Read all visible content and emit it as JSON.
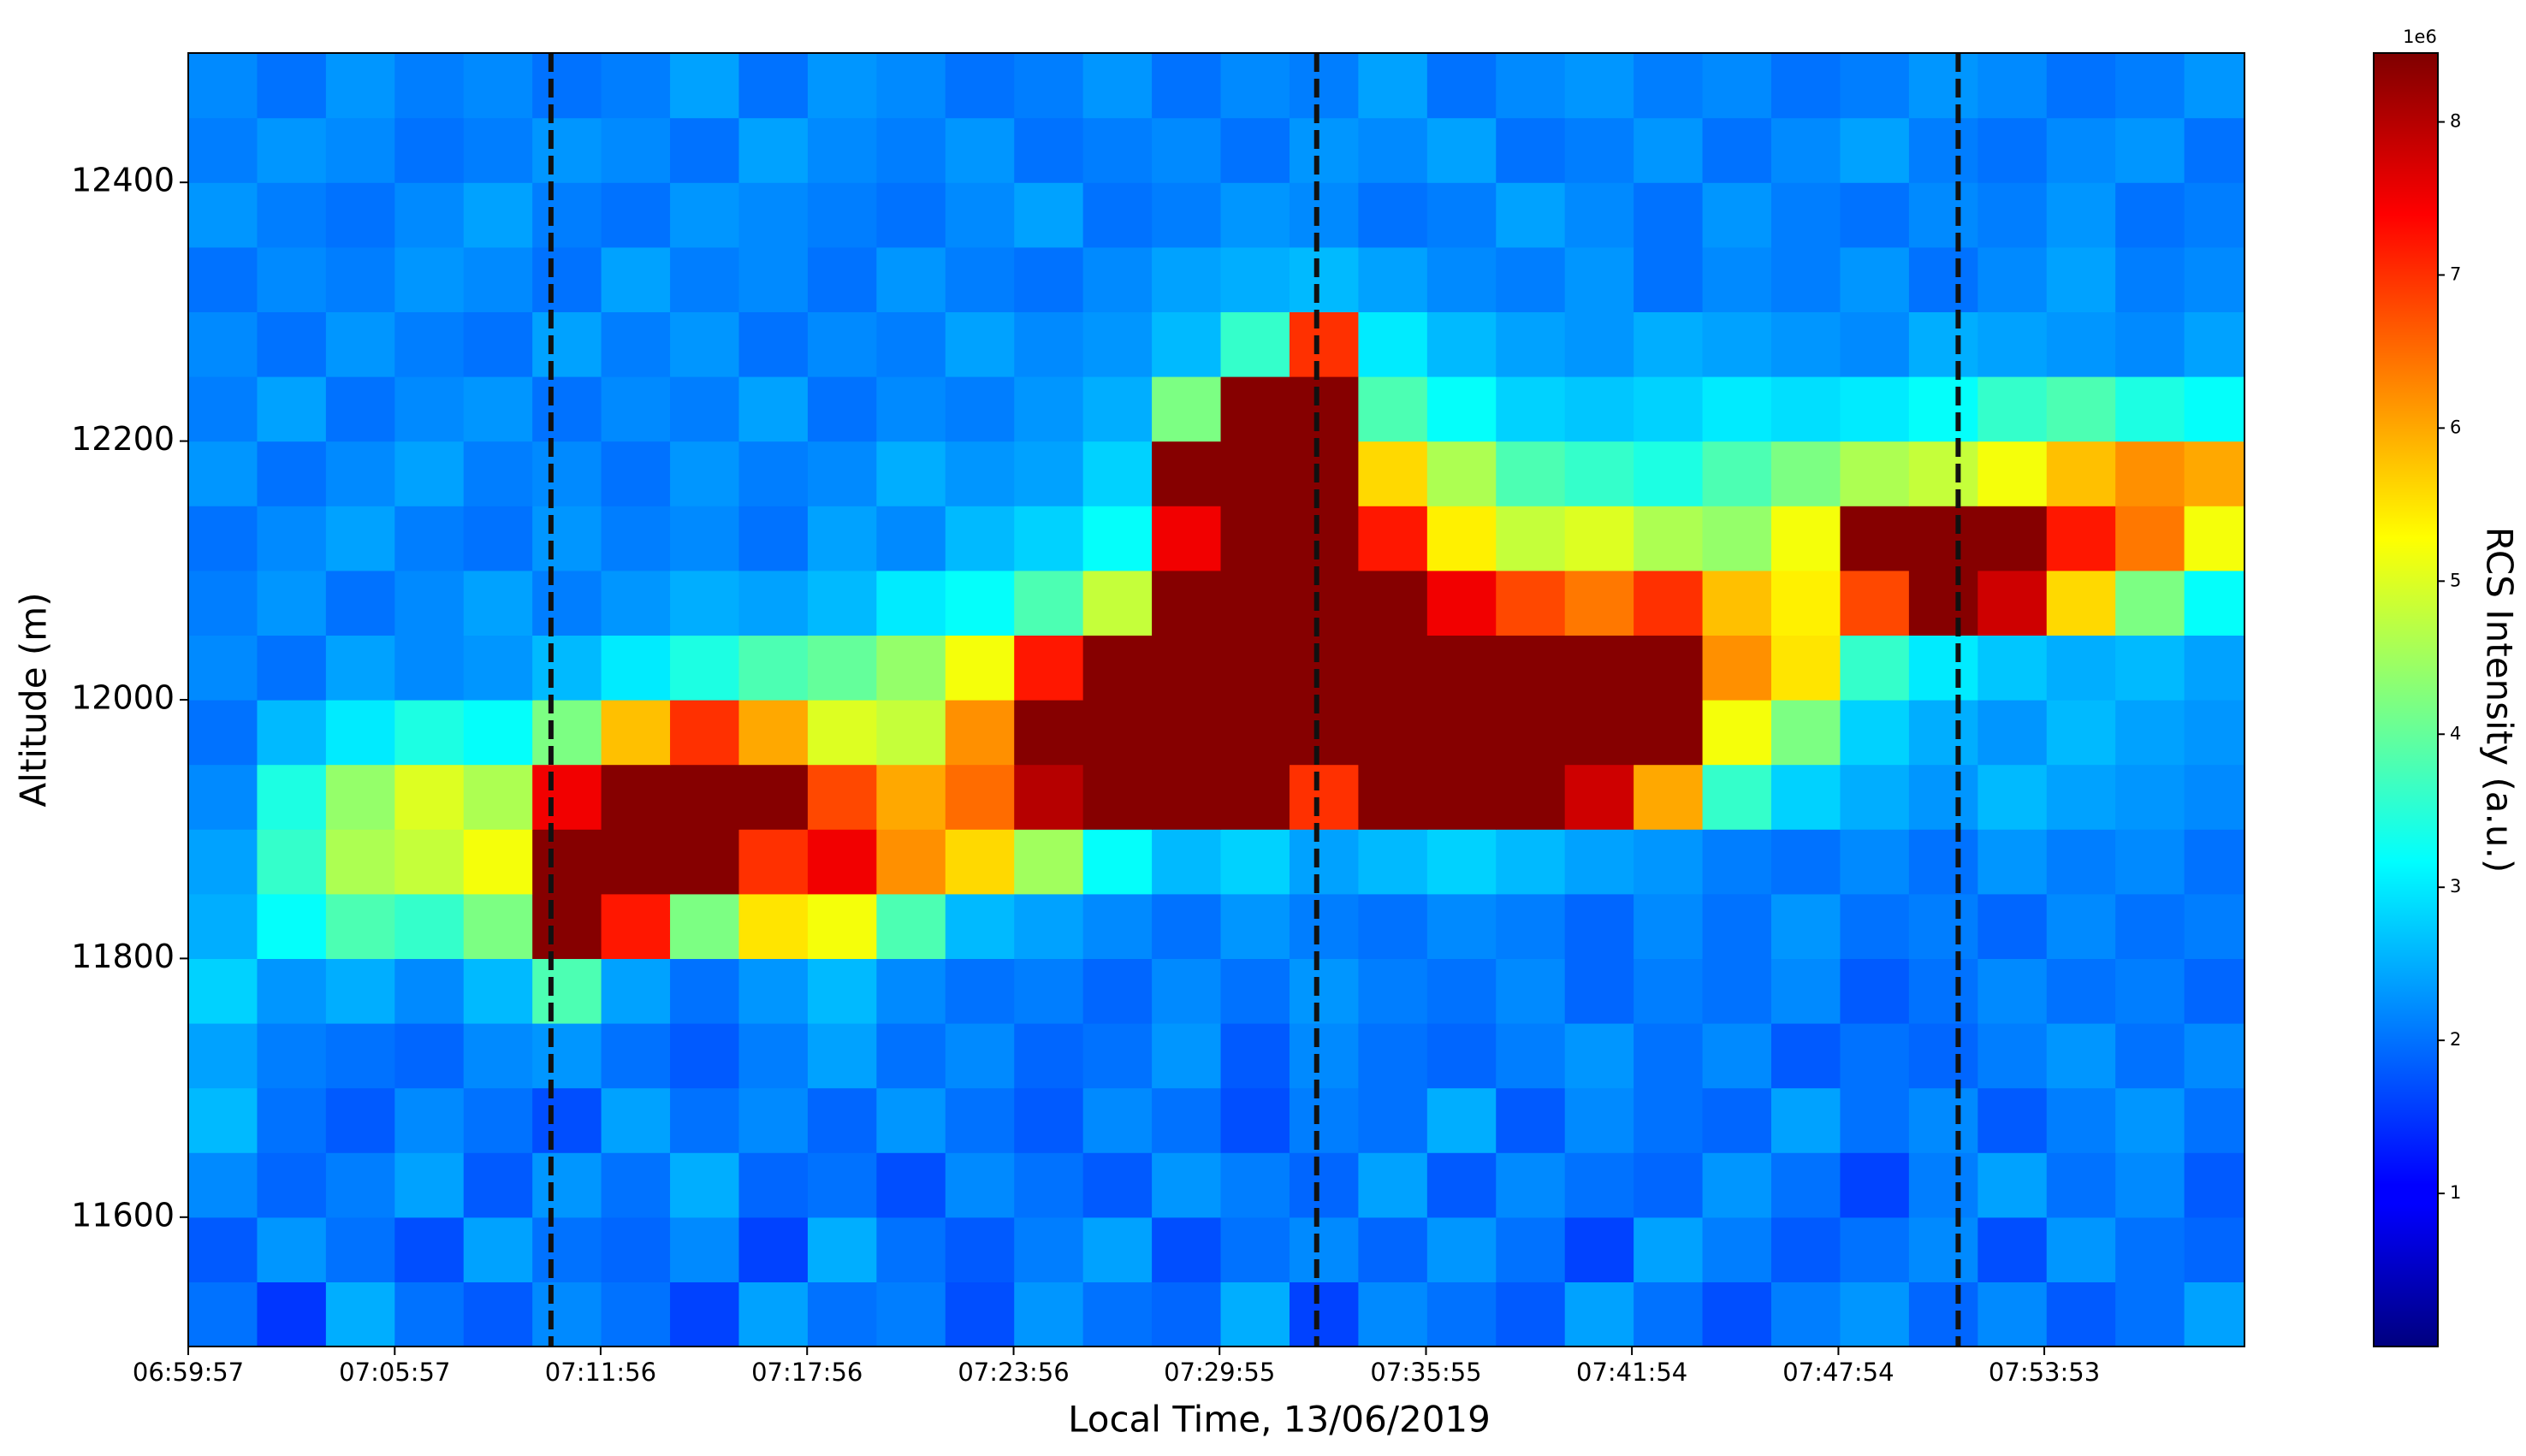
{
  "chart_data": {
    "type": "heatmap",
    "xlabel": "Local Time, 13/06/2019",
    "ylabel": "Altitude (m)",
    "x": [
      420.95,
      422.95,
      424.95,
      426.95,
      428.95,
      430.95,
      432.95,
      434.95,
      436.95,
      438.95,
      440.95,
      442.95,
      444.95,
      446.95,
      448.95,
      450.95,
      452.95,
      454.95,
      456.95,
      458.95,
      460.95,
      462.95,
      464.95,
      466.95,
      468.95,
      470.95,
      472.95,
      474.95,
      476.95,
      478.95
    ],
    "y": [
      11525,
      11575,
      11625,
      11675,
      11725,
      11775,
      11825,
      11875,
      11925,
      11975,
      12025,
      12075,
      12125,
      12175,
      12225,
      12275,
      12325,
      12375,
      12425,
      12475
    ],
    "z": [
      [
        2,
        1.5,
        2.5,
        2,
        1.8,
        2.2,
        2,
        1.6,
        2.4,
        2,
        2.1,
        1.7,
        2.3,
        2,
        1.9,
        2.5,
        1.6,
        2.2,
        2,
        1.8,
        2.4,
        2,
        1.7,
        2.1,
        2.3,
        1.9,
        2.2,
        1.8,
        2,
        2.4
      ],
      [
        1.8,
        2.3,
        2,
        1.7,
        2.4,
        2,
        1.9,
        2.2,
        1.6,
        2.5,
        2,
        1.8,
        2.1,
        2.4,
        1.7,
        2,
        2.2,
        1.9,
        2.3,
        2,
        1.6,
        2.4,
        2.1,
        1.8,
        2,
        2.2,
        1.7,
        2.3,
        2,
        1.9
      ],
      [
        2.2,
        1.9,
        2.1,
        2.4,
        1.8,
        2.3,
        2,
        2.5,
        1.9,
        2,
        1.7,
        2.2,
        2,
        1.8,
        2.3,
        2.1,
        1.9,
        2.4,
        1.8,
        2.2,
        2,
        1.9,
        2.3,
        2,
        1.6,
        2.1,
        2.4,
        2,
        2.2,
        1.8
      ],
      [
        2.6,
        2,
        1.8,
        2.2,
        2,
        1.7,
        2.4,
        2,
        2.2,
        1.9,
        2.3,
        2,
        1.8,
        2.2,
        2,
        1.7,
        2.1,
        2,
        2.5,
        1.8,
        2.2,
        2,
        1.9,
        2.4,
        2,
        2.2,
        1.8,
        2.1,
        2.3,
        2
      ],
      [
        2.4,
        2.1,
        2,
        1.9,
        2.2,
        2.3,
        2,
        1.8,
        2.1,
        2.4,
        2,
        2.2,
        1.9,
        2,
        2.3,
        1.8,
        2.2,
        2,
        1.9,
        2.1,
        2.3,
        2,
        2.2,
        1.8,
        2,
        1.9,
        2.1,
        2.3,
        2,
        2.2
      ],
      [
        2.8,
        2.3,
        2.5,
        2.2,
        2.6,
        3.8,
        2.4,
        2,
        2.3,
        2.6,
        2.2,
        2,
        2.1,
        1.9,
        2.2,
        2,
        2.3,
        2.1,
        2,
        2.2,
        1.9,
        2.1,
        2,
        2.2,
        1.8,
        2,
        2.2,
        2,
        2.1,
        1.9
      ],
      [
        2.5,
        3.2,
        3.8,
        3.6,
        4.2,
        8.4,
        7.2,
        4.2,
        5.5,
        5.2,
        3.8,
        2.6,
        2.4,
        2.2,
        2,
        2.3,
        2.1,
        2,
        2.2,
        2.1,
        1.9,
        2.2,
        2,
        2.3,
        2,
        2.1,
        1.9,
        2.2,
        2,
        2.1
      ],
      [
        2.4,
        3.6,
        4.6,
        4.8,
        5.2,
        8.4,
        8.4,
        8.4,
        7,
        7.5,
        6.2,
        5.6,
        4.5,
        3.2,
        2.6,
        2.8,
        2.4,
        2.6,
        2.8,
        2.6,
        2.4,
        2.3,
        2.1,
        2,
        2.2,
        2,
        2.3,
        2.1,
        2.2,
        2
      ],
      [
        2.2,
        3.4,
        4.4,
        5,
        4.6,
        7.5,
        8.4,
        8.4,
        8.4,
        6.8,
        6,
        6.5,
        8,
        8.4,
        8.4,
        8.4,
        7,
        8.4,
        8.4,
        8.4,
        7.8,
        6,
        3.6,
        2.8,
        2.5,
        2.3,
        2.6,
        2.4,
        2.3,
        2.2
      ],
      [
        2,
        2.6,
        3,
        3.4,
        3.2,
        4.2,
        5.8,
        7,
        6,
        5,
        4.8,
        6.2,
        8.4,
        8.4,
        8.4,
        8.4,
        8.4,
        8.4,
        8.4,
        8.4,
        8.4,
        8.4,
        5.2,
        4.2,
        2.8,
        2.5,
        2.3,
        2.6,
        2.4,
        2.3
      ],
      [
        2.2,
        2,
        2.4,
        2.2,
        2.3,
        2.6,
        3,
        3.4,
        3.8,
        4,
        4.4,
        5.2,
        7.2,
        8.4,
        8.4,
        8.4,
        8.4,
        8.4,
        8.4,
        8.4,
        8.4,
        8.4,
        6.2,
        5.5,
        3.6,
        3,
        2.7,
        2.5,
        2.6,
        2.4
      ],
      [
        2.1,
        2.3,
        2,
        2.2,
        2.4,
        2.1,
        2.3,
        2.5,
        2.4,
        2.6,
        3,
        3.2,
        3.8,
        4.8,
        8.4,
        8.4,
        8.4,
        8.4,
        7.5,
        6.8,
        6.4,
        7,
        5.8,
        5.4,
        6.8,
        8.4,
        7.8,
        5.6,
        4.2,
        3.2
      ],
      [
        2,
        2.2,
        2.4,
        2.1,
        2,
        2.3,
        2.1,
        2.2,
        2,
        2.4,
        2.2,
        2.6,
        2.8,
        3.2,
        7.5,
        8.4,
        8.4,
        7.2,
        5.4,
        4.8,
        5,
        4.6,
        4.4,
        5.2,
        8.4,
        8.4,
        8.4,
        7.2,
        6.4,
        5.2
      ],
      [
        2.3,
        2,
        2.2,
        2.4,
        2.1,
        2.2,
        2,
        2.3,
        2.1,
        2.2,
        2.5,
        2.3,
        2.4,
        2.8,
        8.4,
        8.4,
        8.4,
        5.6,
        4.6,
        3.8,
        3.6,
        3.4,
        3.8,
        4.2,
        4.6,
        4.8,
        5.2,
        5.8,
        6.2,
        6
      ],
      [
        2.1,
        2.4,
        2,
        2.2,
        2.3,
        2,
        2.2,
        2.1,
        2.4,
        2,
        2.2,
        2.1,
        2.3,
        2.5,
        4.2,
        8.4,
        8.4,
        3.8,
        3.2,
        2.8,
        2.7,
        2.8,
        3,
        2.9,
        3,
        3.2,
        3.6,
        3.8,
        3.4,
        3.2
      ],
      [
        2.2,
        2,
        2.3,
        2.1,
        2,
        2.4,
        2.1,
        2.3,
        2,
        2.2,
        2.1,
        2.4,
        2.2,
        2.3,
        2.6,
        3.6,
        7,
        3,
        2.6,
        2.4,
        2.3,
        2.5,
        2.4,
        2.3,
        2.2,
        2.5,
        2.4,
        2.3,
        2.2,
        2.4
      ],
      [
        2,
        2.2,
        2.1,
        2.3,
        2.2,
        2,
        2.4,
        2.1,
        2.2,
        2,
        2.3,
        2.1,
        2,
        2.2,
        2.4,
        2.5,
        2.6,
        2.4,
        2.2,
        2.1,
        2.3,
        2,
        2.2,
        2.1,
        2.3,
        2,
        2.2,
        2.4,
        2.1,
        2.2
      ],
      [
        2.3,
        2.1,
        2,
        2.2,
        2.4,
        2.1,
        2,
        2.3,
        2.2,
        2.1,
        2,
        2.2,
        2.4,
        2,
        2.1,
        2.3,
        2.2,
        2,
        2.1,
        2.4,
        2.2,
        2,
        2.3,
        2.1,
        2,
        2.2,
        2.1,
        2.3,
        2,
        2.1
      ],
      [
        2.1,
        2.3,
        2.2,
        2,
        2.1,
        2.3,
        2.2,
        2,
        2.4,
        2.2,
        2.1,
        2.3,
        2,
        2.1,
        2.2,
        2,
        2.3,
        2.2,
        2.4,
        2,
        2.1,
        2.3,
        2,
        2.2,
        2.4,
        2.1,
        2,
        2.2,
        2.3,
        2
      ],
      [
        2.2,
        2,
        2.3,
        2.1,
        2.2,
        2,
        2.1,
        2.4,
        2,
        2.3,
        2.2,
        2,
        2.1,
        2.3,
        2,
        2.2,
        2.1,
        2.4,
        2,
        2.2,
        2.3,
        2.1,
        2.2,
        2,
        2.1,
        2.3,
        2.2,
        2,
        2.1,
        2.3
      ]
    ],
    "xlim": [
      419.95,
      479.7
    ],
    "ylim": [
      11500,
      12500
    ],
    "xticks": [
      {
        "value": 419.95,
        "label": "06:59:57"
      },
      {
        "value": 425.95,
        "label": "07:05:57"
      },
      {
        "value": 431.933,
        "label": "07:11:56"
      },
      {
        "value": 437.933,
        "label": "07:17:56"
      },
      {
        "value": 443.933,
        "label": "07:23:56"
      },
      {
        "value": 449.917,
        "label": "07:29:55"
      },
      {
        "value": 455.917,
        "label": "07:35:55"
      },
      {
        "value": 461.9,
        "label": "07:41:54"
      },
      {
        "value": 467.9,
        "label": "07:47:54"
      },
      {
        "value": 473.883,
        "label": "07:53:53"
      }
    ],
    "yticks": [
      11600,
      11800,
      12000,
      12200,
      12400
    ],
    "colorbar": {
      "label": "RCS Intensity (a.u.)",
      "offset_label": "1e6",
      "colormap": "jet",
      "lim": [
        0,
        8.45
      ],
      "ticks": [
        1,
        2,
        3,
        4,
        5,
        6,
        7,
        8
      ]
    },
    "vlines": {
      "values": [
        430.49,
        452.74,
        471.38
      ],
      "color": "#111111",
      "style": "dashed"
    }
  }
}
